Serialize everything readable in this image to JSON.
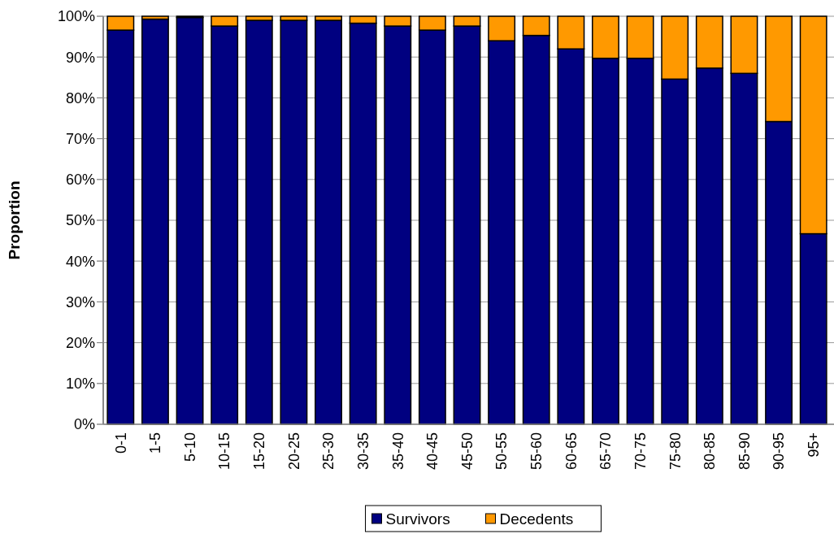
{
  "chart_data": {
    "type": "bar",
    "stacked": true,
    "ylabel": "Proportion",
    "categories": [
      "0-1",
      "1-5",
      "5-10",
      "10-15",
      "15-20",
      "20-25",
      "25-30",
      "30-35",
      "35-40",
      "40-45",
      "45-50",
      "50-55",
      "55-60",
      "60-65",
      "65-70",
      "70-75",
      "75-80",
      "80-85",
      "85-90",
      "90-95",
      "95+"
    ],
    "series": [
      {
        "name": "Survivors",
        "color": "#000080",
        "values": [
          96.6,
          99.3,
          99.7,
          97.6,
          99.0,
          99.0,
          99.0,
          98.3,
          97.6,
          96.6,
          97.6,
          94.0,
          95.3,
          92.0,
          89.7,
          89.7,
          84.6,
          87.3,
          86.0,
          74.2,
          46.7
        ]
      },
      {
        "name": "Decedents",
        "color": "#ff9900",
        "values": [
          3.4,
          0.7,
          0.3,
          2.4,
          1.0,
          1.0,
          1.0,
          1.7,
          2.4,
          3.4,
          2.4,
          6.0,
          4.7,
          8.0,
          10.3,
          10.3,
          15.4,
          12.7,
          14.0,
          25.8,
          53.3
        ]
      }
    ],
    "ylim": [
      0,
      100
    ],
    "yticks": [
      {
        "value": 0,
        "label": "0%"
      },
      {
        "value": 10,
        "label": "10%"
      },
      {
        "value": 20,
        "label": "20%"
      },
      {
        "value": 30,
        "label": "30%"
      },
      {
        "value": 40,
        "label": "40%"
      },
      {
        "value": 50,
        "label": "50%"
      },
      {
        "value": 60,
        "label": "60%"
      },
      {
        "value": 70,
        "label": "70%"
      },
      {
        "value": 80,
        "label": "80%"
      },
      {
        "value": 90,
        "label": "90%"
      },
      {
        "value": 100,
        "label": "100%"
      }
    ],
    "grid": "y",
    "legend": "bottom"
  }
}
